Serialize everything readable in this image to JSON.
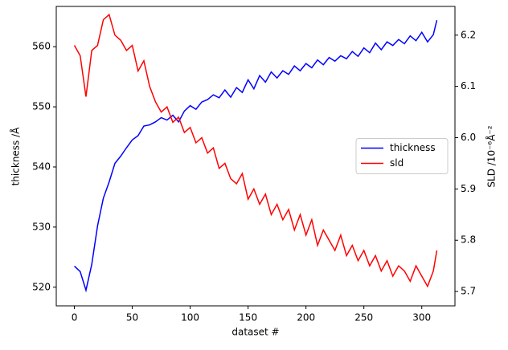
{
  "chart_data": {
    "type": "line",
    "xlabel": "dataset #",
    "ylabel": "thickness /Å",
    "y2label": "SLD /10⁻⁶Å⁻²",
    "x": [
      0,
      5,
      10,
      15,
      20,
      25,
      30,
      35,
      40,
      45,
      50,
      55,
      60,
      65,
      70,
      75,
      80,
      85,
      90,
      95,
      100,
      105,
      110,
      115,
      120,
      125,
      130,
      135,
      140,
      145,
      150,
      155,
      160,
      165,
      170,
      175,
      180,
      185,
      190,
      195,
      200,
      205,
      210,
      215,
      220,
      225,
      230,
      235,
      240,
      245,
      250,
      255,
      260,
      265,
      270,
      275,
      280,
      285,
      290,
      295,
      300,
      305,
      310,
      313
    ],
    "series": [
      {
        "name": "thickness",
        "color": "#0000ff",
        "axis": "y",
        "values": [
          523.5,
          522.6,
          519.5,
          523.8,
          530.2,
          534.8,
          537.5,
          540.6,
          541.8,
          543.2,
          544.5,
          545.2,
          546.8,
          547.0,
          547.5,
          548.2,
          547.8,
          548.6,
          547.5,
          549.3,
          550.2,
          549.6,
          550.8,
          551.2,
          552.0,
          551.5,
          552.8,
          551.6,
          553.2,
          552.4,
          554.5,
          553.0,
          555.2,
          554.1,
          555.8,
          554.8,
          556.0,
          555.4,
          556.8,
          556.0,
          557.2,
          556.5,
          557.8,
          557.0,
          558.2,
          557.6,
          558.5,
          558.0,
          559.2,
          558.4,
          559.8,
          559.0,
          560.6,
          559.5,
          560.8,
          560.2,
          561.2,
          560.5,
          561.8,
          561.0,
          562.4,
          560.8,
          562.0,
          564.4
        ]
      },
      {
        "name": "sld",
        "color": "#ff0000",
        "axis": "y2",
        "values": [
          6.18,
          6.16,
          6.08,
          6.17,
          6.18,
          6.23,
          6.24,
          6.2,
          6.19,
          6.17,
          6.18,
          6.13,
          6.15,
          6.1,
          6.07,
          6.05,
          6.06,
          6.03,
          6.04,
          6.01,
          6.02,
          5.99,
          6.0,
          5.97,
          5.98,
          5.94,
          5.95,
          5.92,
          5.91,
          5.93,
          5.88,
          5.9,
          5.87,
          5.89,
          5.85,
          5.87,
          5.84,
          5.86,
          5.82,
          5.85,
          5.81,
          5.84,
          5.79,
          5.82,
          5.8,
          5.78,
          5.81,
          5.77,
          5.79,
          5.76,
          5.78,
          5.75,
          5.77,
          5.74,
          5.76,
          5.73,
          5.75,
          5.74,
          5.72,
          5.75,
          5.73,
          5.71,
          5.74,
          5.78
        ]
      }
    ],
    "xlim": [
      -15.65,
      328.65
    ],
    "xticks": [
      0,
      50,
      100,
      150,
      200,
      250,
      300
    ],
    "ylim": [
      516.9,
      566.7
    ],
    "yticks": [
      520,
      530,
      540,
      550,
      560
    ],
    "y2lim": [
      5.672,
      6.256
    ],
    "y2ticks": [
      5.7,
      5.8,
      5.9,
      {
        "value": 6,
        "label": "6.0"
      },
      6.1,
      6.2
    ],
    "legend": "center right"
  }
}
